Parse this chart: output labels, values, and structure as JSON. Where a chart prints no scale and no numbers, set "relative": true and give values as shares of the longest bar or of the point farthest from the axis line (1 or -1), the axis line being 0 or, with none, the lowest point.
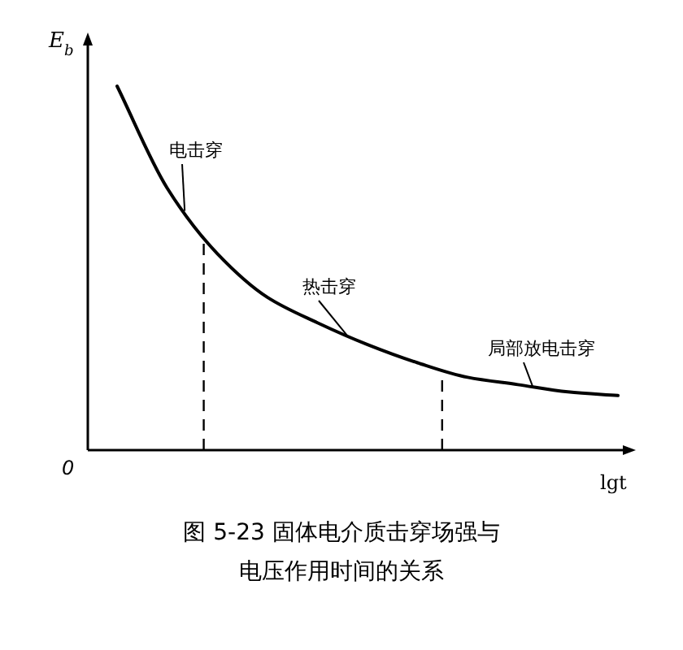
{
  "chart_data": {
    "type": "line",
    "title": "图 5-23  固体电介质击穿场强与电压作用时间的关系",
    "xlabel": "lgt",
    "ylabel": "E$_{b}$",
    "relative": true,
    "categories": [
      null,
      null,
      null,
      null,
      null,
      null,
      null,
      null,
      null,
      null,
      null
    ],
    "series": [
      {
        "color": "#000000",
        "values": [
          1.0,
          0.72,
          0.54,
          0.42,
          0.35,
          0.29,
          0.24,
          0.2,
          0.18,
          0.16,
          0.15
        ]
      }
    ],
    "annotations": [
      "电击穿",
      "热击穿",
      "局部放电击穿",
      "0"
    ]
  }
}
